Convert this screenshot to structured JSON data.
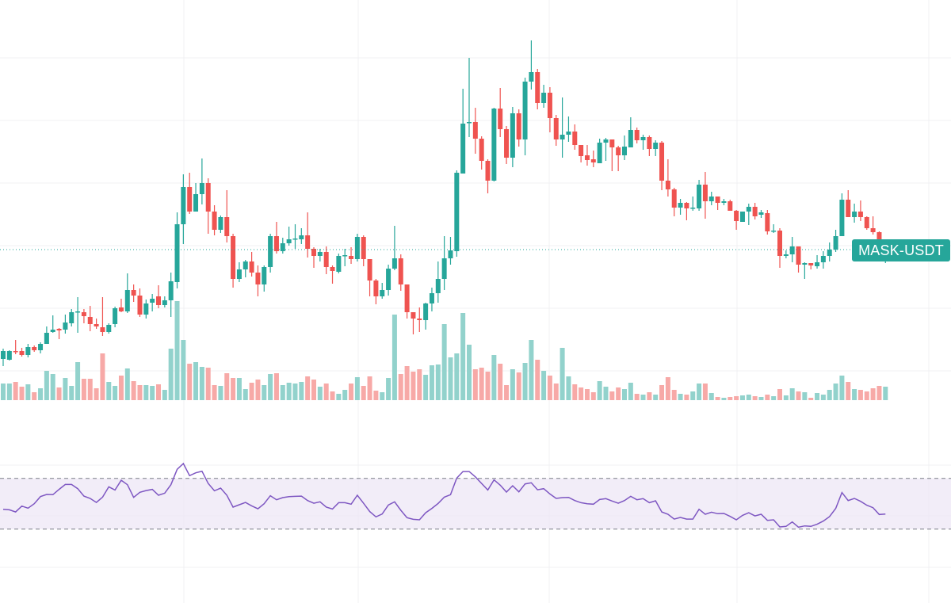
{
  "chart_data": {
    "type": "candlestick",
    "symbol": "MASK-USDT",
    "last_price": 1.85,
    "colors": {
      "up": "#26a69a",
      "down": "#ef5350",
      "up_volume": "#92d2cc",
      "down_volume": "#f7a9a7",
      "rsi_line": "#7e57c2",
      "rsi_band": "#ede7f6",
      "label_bg": "#26a69a"
    },
    "price_range": [
      0.0,
      5.0
    ],
    "rsi_bands": [
      30,
      70
    ],
    "grid": true,
    "columns": [
      "open",
      "high",
      "low",
      "close",
      "volume",
      "rsi"
    ],
    "candles": [
      [
        0.47,
        0.6,
        0.38,
        0.57,
        2.1,
        45.6
      ],
      [
        0.46,
        0.58,
        0.45,
        0.57,
        2.1,
        45.2
      ],
      [
        0.57,
        0.71,
        0.53,
        0.56,
        2.3,
        43.5
      ],
      [
        0.57,
        0.61,
        0.5,
        0.52,
        1.7,
        48.1
      ],
      [
        0.52,
        0.66,
        0.49,
        0.62,
        2.0,
        46.5
      ],
      [
        0.62,
        0.64,
        0.56,
        0.58,
        1.0,
        50.0
      ],
      [
        0.58,
        0.68,
        0.54,
        0.66,
        1.5,
        55.6
      ],
      [
        0.66,
        0.88,
        0.66,
        0.8,
        3.7,
        57.3
      ],
      [
        0.81,
        1.02,
        0.8,
        0.84,
        3.3,
        57.1
      ],
      [
        0.85,
        0.86,
        0.72,
        0.83,
        1.6,
        61.3
      ],
      [
        0.84,
        1.03,
        0.79,
        0.93,
        2.8,
        65.2
      ],
      [
        0.92,
        1.1,
        0.88,
        1.06,
        1.8,
        65.2
      ],
      [
        1.06,
        1.25,
        0.8,
        1.07,
        4.8,
        61.9
      ],
      [
        1.06,
        1.1,
        0.92,
        1.01,
        2.7,
        56.0
      ],
      [
        1.0,
        1.14,
        0.82,
        0.91,
        2.7,
        54.2
      ],
      [
        0.91,
        0.98,
        0.85,
        0.88,
        1.5,
        51.0
      ],
      [
        0.87,
        1.25,
        0.76,
        0.81,
        5.9,
        55.2
      ],
      [
        0.81,
        0.92,
        0.79,
        0.9,
        2.3,
        63.3
      ],
      [
        0.91,
        1.13,
        0.87,
        1.11,
        1.8,
        60.8
      ],
      [
        1.12,
        1.23,
        1.06,
        1.07,
        3.1,
        68.5
      ],
      [
        1.07,
        1.55,
        1.05,
        1.34,
        4.0,
        65.0
      ],
      [
        1.34,
        1.41,
        1.19,
        1.27,
        2.4,
        55.0
      ],
      [
        1.27,
        1.36,
        1.0,
        1.03,
        1.9,
        59.0
      ],
      [
        1.03,
        1.22,
        0.98,
        1.17,
        1.9,
        60.4
      ],
      [
        1.18,
        1.29,
        1.07,
        1.23,
        1.8,
        61.3
      ],
      [
        1.26,
        1.4,
        1.11,
        1.15,
        2.0,
        56.7
      ],
      [
        1.15,
        1.26,
        1.12,
        1.21,
        1.3,
        58.3
      ],
      [
        1.21,
        1.56,
        1.0,
        1.45,
        6.5,
        65.0
      ],
      [
        1.44,
        2.32,
        1.36,
        2.17,
        12.5,
        77.1
      ],
      [
        2.17,
        2.8,
        1.92,
        2.64,
        7.6,
        81.7
      ],
      [
        2.64,
        2.82,
        2.3,
        2.33,
        4.6,
        72.1
      ],
      [
        2.33,
        2.69,
        2.33,
        2.55,
        4.8,
        74.4
      ],
      [
        2.55,
        3.0,
        2.42,
        2.69,
        4.2,
        75.6
      ],
      [
        2.69,
        2.75,
        2.05,
        2.33,
        4.1,
        66.0
      ],
      [
        2.33,
        2.41,
        2.03,
        2.1,
        1.9,
        60.2
      ],
      [
        2.1,
        2.28,
        2.06,
        2.26,
        1.8,
        62.3
      ],
      [
        2.26,
        2.6,
        1.94,
        2.02,
        3.4,
        56.7
      ],
      [
        2.02,
        2.05,
        1.37,
        1.48,
        2.8,
        47.3
      ],
      [
        1.48,
        1.69,
        1.44,
        1.6,
        2.8,
        49.2
      ],
      [
        1.6,
        1.72,
        1.5,
        1.7,
        1.4,
        51.0
      ],
      [
        1.7,
        1.82,
        1.51,
        1.56,
        2.2,
        48.3
      ],
      [
        1.56,
        1.65,
        1.26,
        1.41,
        2.6,
        46.0
      ],
      [
        1.41,
        1.65,
        1.32,
        1.63,
        1.9,
        50.0
      ],
      [
        1.63,
        2.05,
        1.56,
        2.02,
        3.3,
        56.3
      ],
      [
        2.02,
        2.2,
        1.8,
        1.83,
        3.4,
        53.1
      ],
      [
        1.83,
        2.0,
        1.8,
        1.93,
        1.9,
        54.8
      ],
      [
        1.93,
        2.14,
        1.9,
        1.98,
        2.2,
        55.6
      ],
      [
        1.98,
        2.17,
        1.86,
        1.99,
        2.1,
        55.8
      ],
      [
        1.98,
        2.12,
        1.92,
        2.03,
        2.3,
        56.0
      ],
      [
        2.03,
        2.32,
        1.75,
        1.86,
        3.0,
        52.5
      ],
      [
        1.86,
        1.88,
        1.62,
        1.77,
        2.6,
        50.4
      ],
      [
        1.77,
        1.86,
        1.7,
        1.82,
        1.7,
        51.5
      ],
      [
        1.82,
        1.89,
        1.54,
        1.63,
        2.1,
        47.3
      ],
      [
        1.63,
        1.65,
        1.42,
        1.58,
        1.1,
        45.8
      ],
      [
        1.57,
        1.8,
        1.55,
        1.77,
        0.8,
        50.8
      ],
      [
        1.77,
        1.86,
        1.64,
        1.78,
        1.3,
        50.8
      ],
      [
        1.77,
        1.88,
        1.67,
        1.73,
        2.1,
        49.6
      ],
      [
        1.73,
        2.05,
        1.7,
        2.01,
        2.9,
        56.7
      ],
      [
        2.01,
        2.03,
        1.64,
        1.73,
        1.8,
        50.4
      ],
      [
        1.73,
        1.73,
        1.26,
        1.46,
        3.0,
        43.8
      ],
      [
        1.46,
        1.48,
        1.16,
        1.26,
        1.2,
        39.6
      ],
      [
        1.26,
        1.43,
        1.23,
        1.34,
        1.0,
        41.9
      ],
      [
        1.34,
        1.66,
        1.27,
        1.61,
        2.8,
        49.0
      ],
      [
        1.61,
        2.15,
        1.59,
        1.74,
        10.8,
        51.5
      ],
      [
        1.74,
        1.79,
        1.33,
        1.41,
        3.3,
        44.8
      ],
      [
        1.41,
        1.41,
        0.98,
        1.06,
        4.3,
        39.0
      ],
      [
        1.06,
        1.06,
        0.78,
        0.98,
        3.6,
        37.7
      ],
      [
        0.98,
        1.12,
        0.81,
        0.96,
        3.9,
        37.3
      ],
      [
        0.96,
        1.18,
        0.84,
        1.17,
        3.2,
        42.9
      ],
      [
        1.17,
        1.37,
        1.07,
        1.3,
        4.4,
        46.3
      ],
      [
        1.3,
        1.7,
        1.18,
        1.48,
        4.5,
        50.2
      ],
      [
        1.48,
        2.02,
        1.34,
        1.74,
        9.6,
        55.2
      ],
      [
        1.74,
        2.01,
        1.66,
        1.84,
        5.4,
        57.1
      ],
      [
        1.83,
        2.85,
        1.76,
        2.82,
        5.9,
        70.2
      ],
      [
        2.81,
        3.88,
        2.81,
        3.44,
        11.0,
        75.4
      ],
      [
        3.45,
        4.27,
        3.27,
        3.46,
        7.0,
        75.4
      ],
      [
        3.46,
        3.64,
        3.06,
        3.25,
        3.9,
        71.2
      ],
      [
        3.25,
        3.28,
        2.86,
        2.97,
        4.1,
        66.0
      ],
      [
        2.97,
        2.99,
        2.56,
        2.72,
        3.6,
        60.8
      ],
      [
        2.72,
        3.64,
        2.71,
        3.63,
        5.7,
        68.8
      ],
      [
        3.63,
        3.89,
        3.27,
        3.37,
        4.6,
        64.6
      ],
      [
        3.37,
        3.41,
        2.93,
        3.01,
        1.9,
        59.2
      ],
      [
        3.01,
        3.65,
        2.89,
        3.57,
        3.9,
        64.2
      ],
      [
        3.57,
        3.62,
        3.15,
        3.24,
        3.5,
        59.4
      ],
      [
        3.24,
        4.02,
        3.04,
        3.97,
        4.7,
        65.6
      ],
      [
        3.97,
        4.49,
        3.87,
        4.09,
        7.6,
        66.5
      ],
      [
        4.09,
        4.13,
        3.62,
        3.7,
        5.1,
        61.0
      ],
      [
        3.7,
        3.93,
        3.64,
        3.83,
        3.7,
        61.9
      ],
      [
        3.83,
        3.9,
        3.33,
        3.51,
        3.1,
        57.7
      ],
      [
        3.51,
        3.55,
        3.16,
        3.24,
        2.1,
        54.2
      ],
      [
        3.24,
        3.77,
        3.01,
        3.3,
        6.6,
        54.8
      ],
      [
        3.3,
        3.53,
        3.21,
        3.34,
        3.0,
        55.0
      ],
      [
        3.34,
        3.43,
        3.11,
        3.17,
        2.0,
        52.5
      ],
      [
        3.17,
        3.17,
        2.95,
        3.03,
        1.6,
        50.8
      ],
      [
        3.04,
        3.17,
        2.91,
        2.98,
        1.4,
        50.0
      ],
      [
        2.99,
        3.1,
        2.89,
        2.95,
        1.0,
        49.6
      ],
      [
        2.94,
        3.25,
        2.94,
        3.2,
        2.4,
        53.3
      ],
      [
        3.2,
        3.26,
        2.97,
        3.24,
        1.7,
        54.0
      ],
      [
        3.24,
        3.24,
        2.84,
        3.14,
        1.1,
        52.1
      ],
      [
        3.14,
        3.16,
        2.84,
        3.04,
        1.6,
        50.4
      ],
      [
        3.04,
        3.29,
        2.98,
        3.15,
        1.4,
        52.5
      ],
      [
        3.14,
        3.52,
        3.14,
        3.36,
        2.2,
        55.8
      ],
      [
        3.36,
        3.39,
        3.19,
        3.23,
        0.8,
        53.1
      ],
      [
        3.23,
        3.3,
        3.11,
        3.27,
        0.7,
        54.0
      ],
      [
        3.27,
        3.29,
        3.03,
        3.12,
        1.0,
        50.8
      ],
      [
        3.12,
        3.23,
        3.03,
        3.2,
        0.7,
        52.3
      ],
      [
        3.2,
        3.22,
        2.6,
        2.72,
        1.9,
        43.5
      ],
      [
        2.72,
        2.99,
        2.52,
        2.61,
        2.9,
        41.7
      ],
      [
        2.61,
        2.63,
        2.27,
        2.38,
        1.3,
        37.9
      ],
      [
        2.38,
        2.49,
        2.29,
        2.44,
        0.8,
        39.2
      ],
      [
        2.44,
        2.45,
        2.22,
        2.37,
        0.7,
        37.9
      ],
      [
        2.37,
        2.52,
        2.34,
        2.38,
        1.1,
        37.9
      ],
      [
        2.37,
        2.73,
        2.34,
        2.67,
        2.1,
        45.6
      ],
      [
        2.67,
        2.83,
        2.24,
        2.46,
        2.1,
        41.7
      ],
      [
        2.46,
        2.58,
        2.41,
        2.52,
        0.9,
        43.3
      ],
      [
        2.52,
        2.52,
        2.35,
        2.44,
        0.4,
        42.1
      ],
      [
        2.44,
        2.49,
        2.41,
        2.46,
        0.3,
        42.3
      ],
      [
        2.46,
        2.48,
        2.34,
        2.34,
        0.4,
        40.0
      ],
      [
        2.34,
        2.35,
        2.1,
        2.21,
        0.5,
        37.3
      ],
      [
        2.2,
        2.33,
        2.2,
        2.33,
        0.6,
        40.8
      ],
      [
        2.33,
        2.43,
        2.16,
        2.39,
        0.7,
        42.9
      ],
      [
        2.39,
        2.44,
        2.23,
        2.27,
        0.5,
        40.4
      ],
      [
        2.29,
        2.35,
        2.25,
        2.32,
        0.4,
        41.7
      ],
      [
        2.31,
        2.35,
        2.04,
        2.08,
        0.7,
        36.9
      ],
      [
        2.08,
        2.17,
        2.06,
        2.09,
        0.5,
        37.3
      ],
      [
        2.09,
        2.12,
        1.62,
        1.77,
        1.4,
        31.7
      ],
      [
        1.77,
        1.84,
        1.74,
        1.79,
        0.6,
        32.1
      ],
      [
        1.79,
        2.01,
        1.69,
        1.89,
        1.5,
        35.6
      ],
      [
        1.89,
        1.89,
        1.56,
        1.66,
        1.1,
        31.5
      ],
      [
        1.66,
        1.69,
        1.48,
        1.68,
        1.0,
        32.5
      ],
      [
        1.68,
        1.68,
        1.6,
        1.65,
        0.3,
        32.1
      ],
      [
        1.64,
        1.78,
        1.61,
        1.69,
        0.9,
        33.8
      ],
      [
        1.69,
        1.83,
        1.61,
        1.77,
        0.7,
        36.3
      ],
      [
        1.77,
        1.94,
        1.7,
        1.85,
        1.3,
        39.8
      ],
      [
        1.85,
        2.1,
        1.82,
        2.02,
        2.1,
        46.3
      ],
      [
        2.02,
        2.56,
        2.02,
        2.48,
        3.1,
        58.8
      ],
      [
        2.48,
        2.6,
        2.26,
        2.26,
        2.3,
        52.5
      ],
      [
        2.26,
        2.43,
        2.19,
        2.33,
        1.4,
        54.2
      ],
      [
        2.33,
        2.47,
        2.21,
        2.26,
        1.3,
        51.9
      ],
      [
        2.26,
        2.27,
        2.1,
        2.12,
        1.1,
        48.8
      ],
      [
        2.12,
        2.27,
        2.04,
        2.07,
        1.5,
        46.9
      ],
      [
        2.07,
        2.08,
        1.88,
        1.9,
        1.8,
        41.5
      ],
      [
        1.82,
        1.95,
        1.68,
        1.85,
        1.7,
        41.9
      ]
    ]
  }
}
